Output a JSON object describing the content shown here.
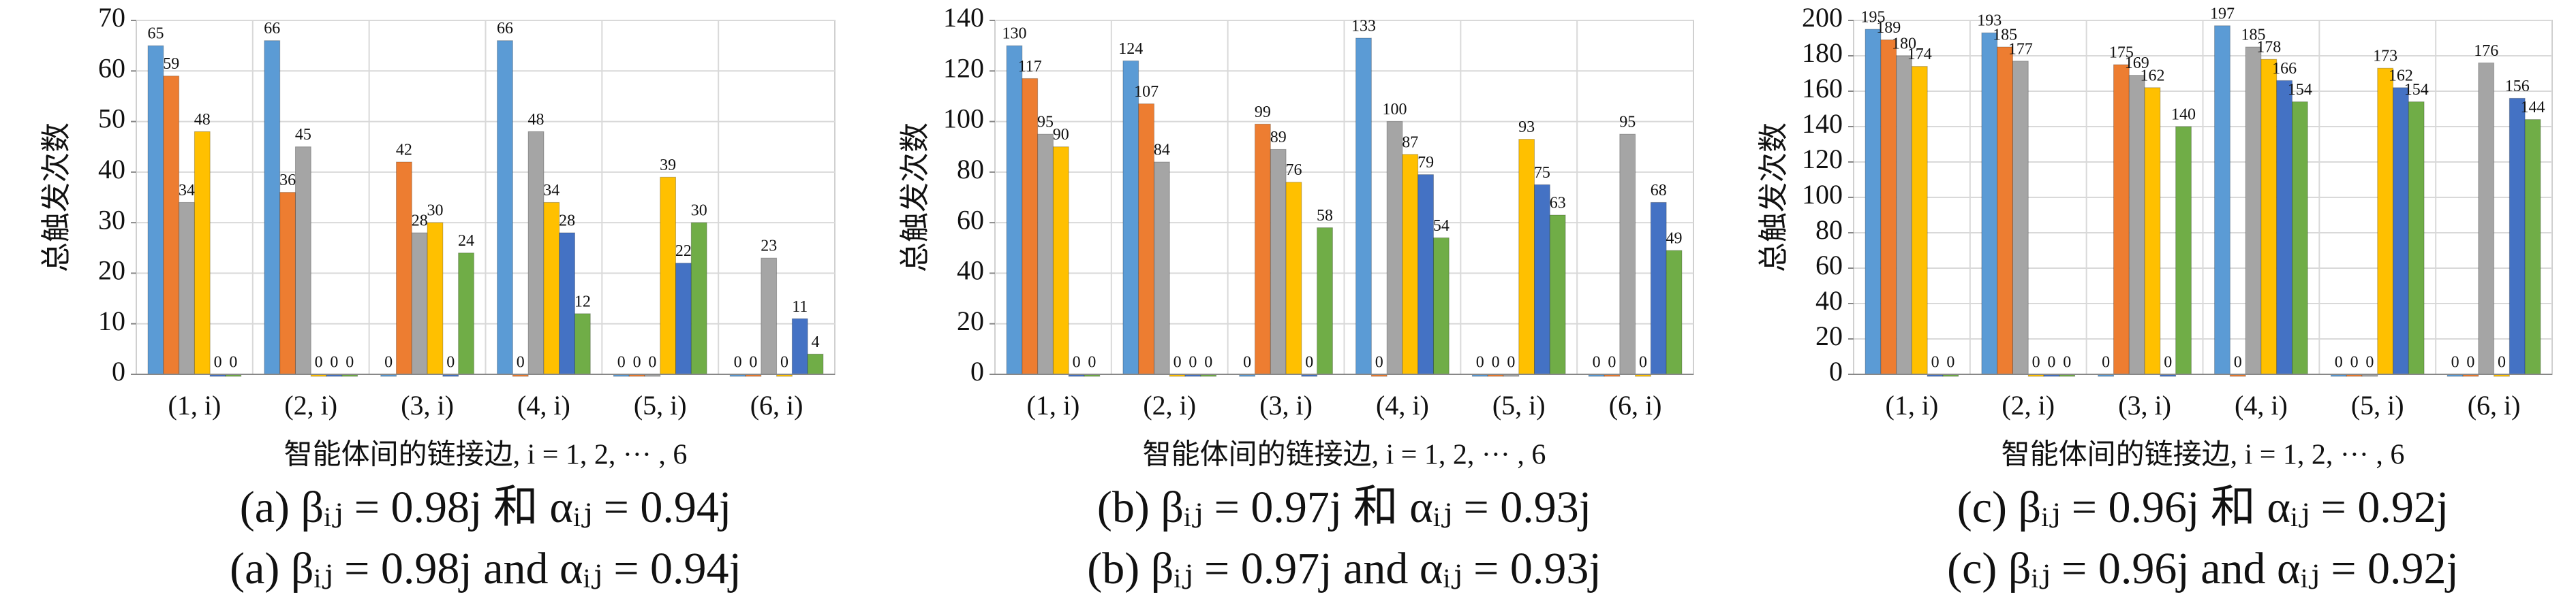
{
  "chart_data": [
    {
      "type": "bar",
      "y_label": "总触发次数",
      "x_label": "智能体间的链接边, i = 1, 2, ··· , 6",
      "captions": [
        "(a) βᵢⱼ = 0.98j 和 αᵢⱼ = 0.94j",
        "(a) βᵢⱼ = 0.98j and αᵢⱼ = 0.94j"
      ],
      "categories": [
        "(1, i)",
        "(2, i)",
        "(3, i)",
        "(4, i)",
        "(5, i)",
        "(6, i)"
      ],
      "series": [
        {
          "color": "#5b9bd5",
          "values": [
            65,
            66,
            0,
            66,
            0,
            0
          ]
        },
        {
          "color": "#ed7d31",
          "values": [
            59,
            36,
            42,
            0,
            0,
            0
          ]
        },
        {
          "color": "#a5a5a5",
          "values": [
            34,
            45,
            28,
            48,
            0,
            23
          ]
        },
        {
          "color": "#ffc000",
          "values": [
            48,
            0,
            30,
            34,
            39,
            0
          ]
        },
        {
          "color": "#4472c4",
          "values": [
            0,
            0,
            0,
            28,
            22,
            11
          ]
        },
        {
          "color": "#70ad47",
          "values": [
            0,
            0,
            24,
            12,
            30,
            4
          ]
        }
      ],
      "ylim": [
        0,
        70
      ],
      "yticks": [
        0,
        10,
        20,
        30,
        40,
        50,
        60,
        70
      ],
      "grid": true
    },
    {
      "type": "bar",
      "y_label": "总触发次数",
      "x_label": "智能体间的链接边, i = 1, 2, ··· , 6",
      "captions": [
        "(b) βᵢⱼ = 0.97j 和 αᵢⱼ = 0.93j",
        "(b) βᵢⱼ = 0.97j and αᵢⱼ = 0.93j"
      ],
      "categories": [
        "(1, i)",
        "(2, i)",
        "(3, i)",
        "(4, i)",
        "(5, i)",
        "(6, i)"
      ],
      "series": [
        {
          "color": "#5b9bd5",
          "values": [
            130,
            124,
            0,
            133,
            0,
            0
          ]
        },
        {
          "color": "#ed7d31",
          "values": [
            117,
            107,
            99,
            0,
            0,
            0
          ]
        },
        {
          "color": "#a5a5a5",
          "values": [
            95,
            84,
            89,
            100,
            0,
            95
          ]
        },
        {
          "color": "#ffc000",
          "values": [
            90,
            0,
            76,
            87,
            93,
            0
          ]
        },
        {
          "color": "#4472c4",
          "values": [
            0,
            0,
            0,
            79,
            75,
            68
          ]
        },
        {
          "color": "#70ad47",
          "values": [
            0,
            0,
            58,
            54,
            63,
            49
          ]
        }
      ],
      "ylim": [
        0,
        140
      ],
      "yticks": [
        0,
        20,
        40,
        60,
        80,
        100,
        120,
        140
      ],
      "grid": true
    },
    {
      "type": "bar",
      "y_label": "总触发次数",
      "x_label": "智能体间的链接边, i = 1, 2, ··· , 6",
      "captions": [
        "(c) βᵢⱼ = 0.96j 和 αᵢⱼ = 0.92j",
        "(c) βᵢⱼ = 0.96j and αᵢⱼ = 0.92j"
      ],
      "categories": [
        "(1, i)",
        "(2, i)",
        "(3, i)",
        "(4, i)",
        "(5, i)",
        "(6, i)"
      ],
      "series": [
        {
          "color": "#5b9bd5",
          "values": [
            195,
            193,
            0,
            197,
            0,
            0
          ]
        },
        {
          "color": "#ed7d31",
          "values": [
            189,
            185,
            175,
            0,
            0,
            0
          ]
        },
        {
          "color": "#a5a5a5",
          "values": [
            180,
            177,
            169,
            185,
            0,
            176
          ]
        },
        {
          "color": "#ffc000",
          "values": [
            174,
            0,
            162,
            178,
            173,
            0
          ]
        },
        {
          "color": "#4472c4",
          "values": [
            0,
            0,
            0,
            166,
            162,
            156
          ]
        },
        {
          "color": "#70ad47",
          "values": [
            0,
            0,
            140,
            154,
            154,
            144
          ]
        }
      ],
      "ylim": [
        0,
        200
      ],
      "yticks": [
        0,
        20,
        40,
        60,
        80,
        100,
        120,
        140,
        160,
        180,
        200
      ],
      "grid": true
    }
  ]
}
